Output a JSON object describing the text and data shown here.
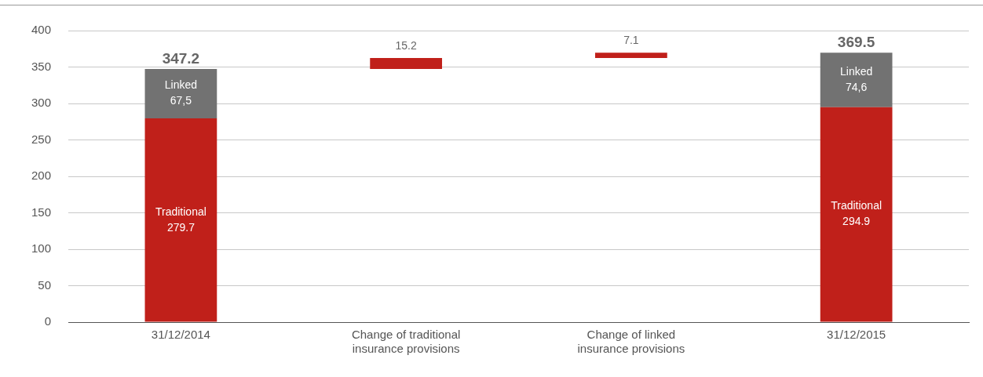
{
  "chart_data": {
    "type": "bar",
    "stacked": true,
    "categories": [
      "31/12/2014",
      "Change of traditional insurance provisions",
      "Change of linked insurance provisions",
      "31/12/2015"
    ],
    "series": [
      {
        "name": "Traditional",
        "color": "#c0201a",
        "values": [
          279.7,
          null,
          null,
          294.9
        ],
        "value_labels": [
          "279.7",
          null,
          null,
          "294.9"
        ]
      },
      {
        "name": "Linked",
        "color": "#727272",
        "values": [
          67.5,
          null,
          null,
          74.6
        ],
        "value_labels": [
          "67,5",
          null,
          null,
          "74,6"
        ]
      },
      {
        "color": "#c0201a",
        "values": [
          null,
          15.2,
          7.1,
          null
        ],
        "base": [
          null,
          347.2,
          362.4,
          null
        ],
        "value_labels": [
          null,
          "15.2",
          "7.1",
          null
        ]
      }
    ],
    "totals": [
      "347.2",
      null,
      null,
      "369.5"
    ],
    "ylim": [
      0,
      400
    ],
    "yticks": [
      0,
      50,
      100,
      150,
      200,
      250,
      300,
      350,
      400
    ],
    "grid": "y",
    "legend": false
  }
}
